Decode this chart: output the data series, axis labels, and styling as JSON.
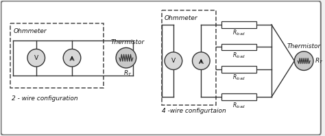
{
  "bg_color": "#f0f0f0",
  "outer_border_color": "#666666",
  "line_color": "#333333",
  "dashed_box_color": "#555555",
  "text_color": "#111111",
  "title_left": "2 - wire configuration",
  "title_right": "4 -wire configurtaion",
  "label_ohmmeter_left": "Ohmmeter",
  "label_ohmmeter_right": "Ohmmeter",
  "label_thermistor_left": "Thermistor",
  "label_thermistor_right": "Thermistor",
  "label_rt": "$R_T$",
  "label_rload": "$R_{load}$",
  "figsize": [
    4.74,
    1.98
  ],
  "dpi": 100
}
